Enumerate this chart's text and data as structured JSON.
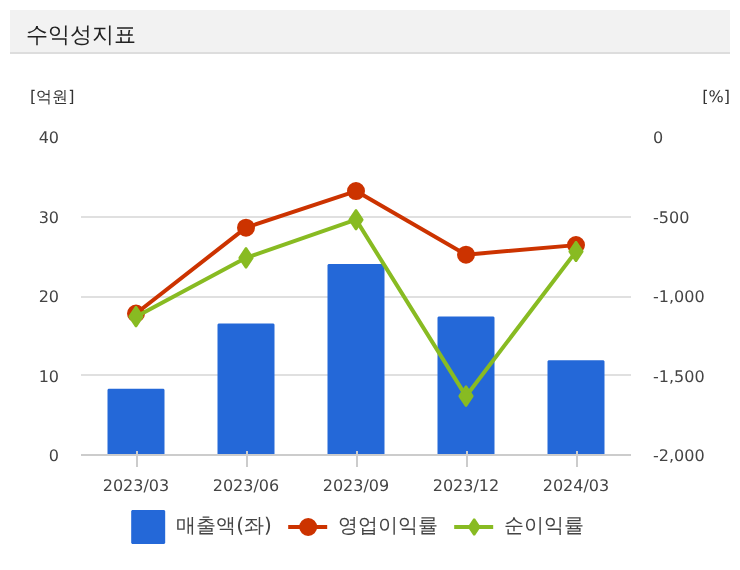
{
  "chart_data": {
    "type": "bar",
    "title": "수익성지표",
    "categories": [
      "2023/03",
      "2023/06",
      "2023/09",
      "2023/12",
      "2024/03"
    ],
    "ylabel": "[억원]",
    "y2label": "[%]",
    "ylim": [
      0,
      40
    ],
    "yticks": [
      0,
      10,
      20,
      30,
      40
    ],
    "y2lim": [
      -2000,
      0
    ],
    "y2ticks": [
      {
        "value": -2000,
        "label": "-2,000"
      },
      {
        "value": -1500,
        "label": "-1,500"
      },
      {
        "value": -1000,
        "label": "-1,000"
      },
      {
        "value": -500,
        "label": "-500"
      },
      {
        "value": 0,
        "label": "0"
      }
    ],
    "grid": "y",
    "legend": "bottom",
    "series": [
      {
        "name": "매출액(좌)",
        "color": "#2468d8",
        "values": [
          8.2,
          16.4,
          23.9,
          17.3,
          11.8
        ]
      },
      {
        "name": "영업이익률",
        "type": "line",
        "axis": "y2",
        "marker": "circle",
        "color": "#cc3300",
        "values": [
          -1110,
          -570,
          -340,
          -740,
          -680
        ]
      },
      {
        "name": "순이익률",
        "type": "line",
        "axis": "y2",
        "marker": "diamond",
        "color": "#88bb22",
        "values": [
          -1130,
          -760,
          -520,
          -1630,
          -720
        ]
      }
    ]
  }
}
